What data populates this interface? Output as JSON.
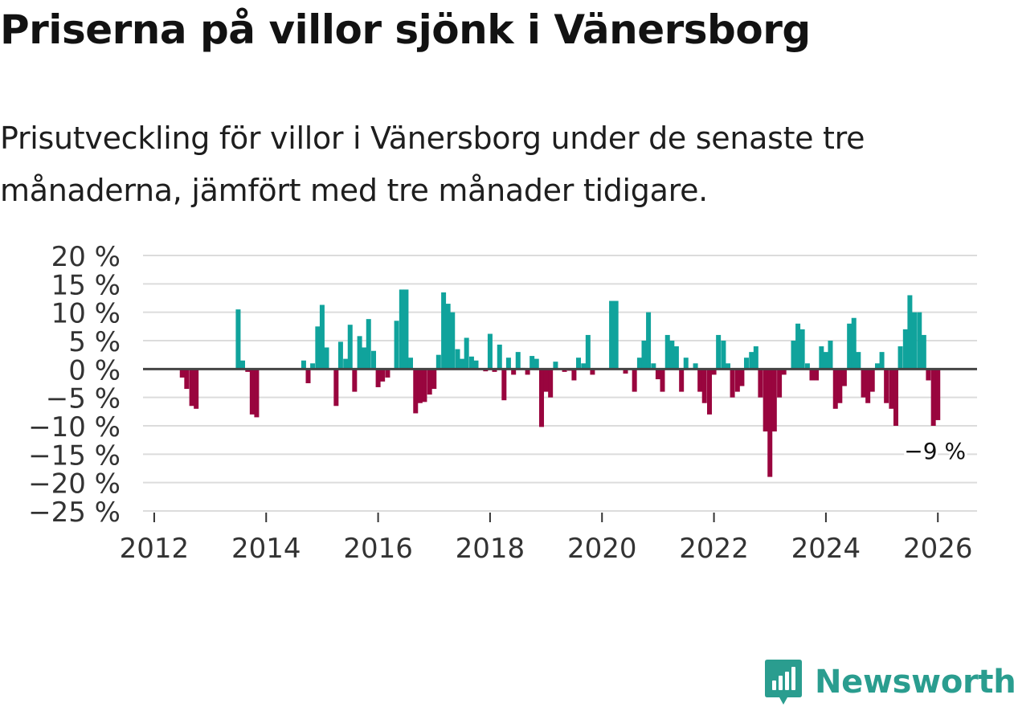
{
  "title": "Priserna på villor sjönk i Vänersborg",
  "subtitle": "Prisutveckling för villor i Vänersborg under de senaste tre månaderna, jämfört med tre månader tidigare.",
  "brand": {
    "name": "Newsworthy",
    "icon": "newsworthy-logo-icon"
  },
  "colors": {
    "positive": "#10a39c",
    "negative": "#99053e",
    "grid": "#dcdcdc",
    "zero": "#444444",
    "brand": "#2a9d8f"
  },
  "chart_data": {
    "type": "bar",
    "title": "Priserna på villor sjönk i Vänersborg",
    "xlabel": "",
    "ylabel": "",
    "ylim": [
      -25,
      20
    ],
    "yticks": [
      20,
      15,
      10,
      5,
      0,
      -5,
      -10,
      -15,
      -20,
      -25
    ],
    "ytick_labels": [
      "20 %",
      "15 %",
      "10 %",
      "5 %",
      "0 %",
      "−5 %",
      "−10 %",
      "−15 %",
      "−20 %",
      "−25 %"
    ],
    "xticks": [
      2012,
      2014,
      2016,
      2018,
      2020,
      2022,
      2024,
      2026
    ],
    "xtick_labels": [
      "2012",
      "2014",
      "2016",
      "2018",
      "2020",
      "2022",
      "2024",
      "2026"
    ],
    "x_range": [
      2011.8,
      2026.7
    ],
    "annotation": {
      "x": 2025.92,
      "value": -9,
      "label": "−9 %"
    },
    "series": [
      {
        "name": "Prisutveckling",
        "points": [
          {
            "x": 2012.5,
            "y": -1.5
          },
          {
            "x": 2012.58,
            "y": -3.5
          },
          {
            "x": 2012.67,
            "y": -6.5
          },
          {
            "x": 2012.75,
            "y": -7
          },
          {
            "x": 2013.5,
            "y": 10.5
          },
          {
            "x": 2013.58,
            "y": 1.5
          },
          {
            "x": 2013.67,
            "y": -0.5
          },
          {
            "x": 2013.75,
            "y": -8
          },
          {
            "x": 2013.83,
            "y": -8.5
          },
          {
            "x": 2014.67,
            "y": 1.5
          },
          {
            "x": 2014.75,
            "y": -2.5
          },
          {
            "x": 2014.83,
            "y": 1
          },
          {
            "x": 2014.92,
            "y": 7.5
          },
          {
            "x": 2015.0,
            "y": 11.3
          },
          {
            "x": 2015.08,
            "y": 3.8
          },
          {
            "x": 2015.25,
            "y": -6.5
          },
          {
            "x": 2015.33,
            "y": 4.8
          },
          {
            "x": 2015.42,
            "y": 1.8
          },
          {
            "x": 2015.5,
            "y": 7.8
          },
          {
            "x": 2015.58,
            "y": -4
          },
          {
            "x": 2015.67,
            "y": 5.8
          },
          {
            "x": 2015.75,
            "y": 3.8
          },
          {
            "x": 2015.83,
            "y": 8.8
          },
          {
            "x": 2015.92,
            "y": 3.2
          },
          {
            "x": 2016.0,
            "y": -3.2
          },
          {
            "x": 2016.08,
            "y": -2.2
          },
          {
            "x": 2016.17,
            "y": -1.5
          },
          {
            "x": 2016.33,
            "y": 8.5
          },
          {
            "x": 2016.42,
            "y": 14
          },
          {
            "x": 2016.5,
            "y": 14
          },
          {
            "x": 2016.58,
            "y": 2
          },
          {
            "x": 2016.67,
            "y": -7.8
          },
          {
            "x": 2016.75,
            "y": -6
          },
          {
            "x": 2016.83,
            "y": -5.8
          },
          {
            "x": 2016.92,
            "y": -4.5
          },
          {
            "x": 2017.0,
            "y": -3.5
          },
          {
            "x": 2017.08,
            "y": 2.5
          },
          {
            "x": 2017.17,
            "y": 13.5
          },
          {
            "x": 2017.25,
            "y": 11.5
          },
          {
            "x": 2017.33,
            "y": 10
          },
          {
            "x": 2017.42,
            "y": 3.5
          },
          {
            "x": 2017.5,
            "y": 1.8
          },
          {
            "x": 2017.58,
            "y": 5.5
          },
          {
            "x": 2017.67,
            "y": 2.2
          },
          {
            "x": 2017.75,
            "y": 1.5
          },
          {
            "x": 2017.92,
            "y": -0.4
          },
          {
            "x": 2018.0,
            "y": 6.2
          },
          {
            "x": 2018.08,
            "y": -0.5
          },
          {
            "x": 2018.17,
            "y": 4.3
          },
          {
            "x": 2018.25,
            "y": -5.5
          },
          {
            "x": 2018.33,
            "y": 2
          },
          {
            "x": 2018.42,
            "y": -1
          },
          {
            "x": 2018.5,
            "y": 3
          },
          {
            "x": 2018.58,
            "y": 0.2
          },
          {
            "x": 2018.67,
            "y": -1
          },
          {
            "x": 2018.75,
            "y": 2.3
          },
          {
            "x": 2018.83,
            "y": 1.8
          },
          {
            "x": 2018.92,
            "y": -10.2
          },
          {
            "x": 2019.0,
            "y": -4
          },
          {
            "x": 2019.08,
            "y": -5
          },
          {
            "x": 2019.17,
            "y": 1.3
          },
          {
            "x": 2019.33,
            "y": -0.5
          },
          {
            "x": 2019.42,
            "y": -0.3
          },
          {
            "x": 2019.5,
            "y": -2
          },
          {
            "x": 2019.58,
            "y": 2
          },
          {
            "x": 2019.67,
            "y": 1
          },
          {
            "x": 2019.75,
            "y": 6
          },
          {
            "x": 2019.83,
            "y": -1
          },
          {
            "x": 2020.17,
            "y": 12
          },
          {
            "x": 2020.25,
            "y": 12
          },
          {
            "x": 2020.42,
            "y": -0.8
          },
          {
            "x": 2020.58,
            "y": -4
          },
          {
            "x": 2020.67,
            "y": 2
          },
          {
            "x": 2020.75,
            "y": 5
          },
          {
            "x": 2020.83,
            "y": 10
          },
          {
            "x": 2020.92,
            "y": 1
          },
          {
            "x": 2021.0,
            "y": -1.8
          },
          {
            "x": 2021.08,
            "y": -4
          },
          {
            "x": 2021.17,
            "y": 6
          },
          {
            "x": 2021.25,
            "y": 5
          },
          {
            "x": 2021.33,
            "y": 4
          },
          {
            "x": 2021.42,
            "y": -4
          },
          {
            "x": 2021.5,
            "y": 2
          },
          {
            "x": 2021.58,
            "y": 0.2
          },
          {
            "x": 2021.67,
            "y": 1
          },
          {
            "x": 2021.75,
            "y": -4
          },
          {
            "x": 2021.83,
            "y": -6
          },
          {
            "x": 2021.92,
            "y": -8
          },
          {
            "x": 2022.0,
            "y": -1
          },
          {
            "x": 2022.08,
            "y": 6
          },
          {
            "x": 2022.17,
            "y": 5
          },
          {
            "x": 2022.25,
            "y": 1
          },
          {
            "x": 2022.33,
            "y": -5
          },
          {
            "x": 2022.42,
            "y": -4
          },
          {
            "x": 2022.5,
            "y": -3
          },
          {
            "x": 2022.58,
            "y": 2
          },
          {
            "x": 2022.67,
            "y": 3
          },
          {
            "x": 2022.75,
            "y": 4
          },
          {
            "x": 2022.83,
            "y": -5
          },
          {
            "x": 2022.92,
            "y": -11
          },
          {
            "x": 2023.0,
            "y": -19
          },
          {
            "x": 2023.08,
            "y": -11
          },
          {
            "x": 2023.17,
            "y": -5
          },
          {
            "x": 2023.25,
            "y": -1
          },
          {
            "x": 2023.42,
            "y": 5
          },
          {
            "x": 2023.5,
            "y": 8
          },
          {
            "x": 2023.58,
            "y": 7
          },
          {
            "x": 2023.67,
            "y": 1
          },
          {
            "x": 2023.75,
            "y": -2
          },
          {
            "x": 2023.83,
            "y": -2
          },
          {
            "x": 2023.92,
            "y": 4
          },
          {
            "x": 2024.0,
            "y": 3
          },
          {
            "x": 2024.08,
            "y": 5
          },
          {
            "x": 2024.17,
            "y": -7
          },
          {
            "x": 2024.25,
            "y": -6
          },
          {
            "x": 2024.33,
            "y": -3
          },
          {
            "x": 2024.42,
            "y": 8
          },
          {
            "x": 2024.5,
            "y": 9
          },
          {
            "x": 2024.58,
            "y": 3
          },
          {
            "x": 2024.67,
            "y": -5
          },
          {
            "x": 2024.75,
            "y": -6
          },
          {
            "x": 2024.83,
            "y": -4
          },
          {
            "x": 2024.92,
            "y": 1
          },
          {
            "x": 2025.0,
            "y": 3
          },
          {
            "x": 2025.08,
            "y": -6
          },
          {
            "x": 2025.17,
            "y": -7
          },
          {
            "x": 2025.25,
            "y": -10
          },
          {
            "x": 2025.33,
            "y": 4
          },
          {
            "x": 2025.42,
            "y": 7
          },
          {
            "x": 2025.5,
            "y": 13
          },
          {
            "x": 2025.58,
            "y": 10
          },
          {
            "x": 2025.67,
            "y": 10
          },
          {
            "x": 2025.75,
            "y": 6
          },
          {
            "x": 2025.83,
            "y": -2
          },
          {
            "x": 2025.92,
            "y": -10
          },
          {
            "x": 2026.0,
            "y": -9
          }
        ]
      }
    ]
  }
}
